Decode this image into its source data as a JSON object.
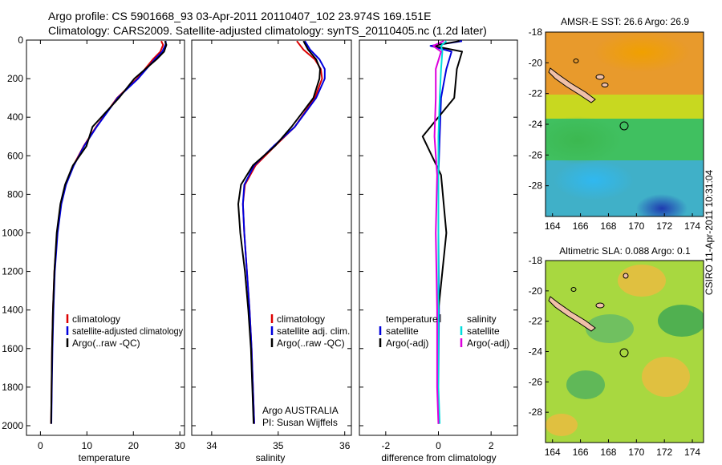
{
  "header": {
    "line1": "Argo profile: CS 5901668_93 03-Apr-2011 20110407_102 23.974S 169.151E",
    "line2": "Climatology: CARS2009. Satellite-adjusted climatology: synTS_20110405.nc (1.2d later)"
  },
  "credit": "CSIRO 11-Apr-2011 10:31:04",
  "chart_data": [
    {
      "type": "line",
      "panel": "temperature",
      "xlabel": "temperature",
      "ylabel": "",
      "xlim": [
        -3,
        31
      ],
      "ylim": [
        2050,
        0
      ],
      "xticks": [
        0,
        10,
        20,
        30
      ],
      "yticks": [
        0,
        200,
        400,
        600,
        800,
        1000,
        1200,
        1400,
        1600,
        1800,
        2000
      ],
      "legend": [
        "climatology",
        "satellite-adjusted climatology",
        "Argo(..raw -QC)"
      ],
      "series": [
        {
          "name": "climatology",
          "color": "#dd0000",
          "x": [
            26.0,
            26.4,
            25.8,
            24.2,
            20.8,
            16.5,
            12.0,
            9.3,
            7.1,
            5.4,
            4.4,
            3.6,
            3.0,
            2.7,
            2.5,
            2.4,
            2.3
          ],
          "y": [
            5,
            25,
            60,
            100,
            200,
            300,
            450,
            550,
            650,
            750,
            850,
            1000,
            1200,
            1400,
            1600,
            1800,
            1990
          ]
        },
        {
          "name": "satellite-adjusted climatology",
          "color": "#0000dd",
          "x": [
            27.0,
            26.9,
            26.2,
            24.6,
            21.0,
            16.6,
            12.1,
            9.4,
            7.2,
            5.5,
            4.5,
            3.7,
            3.1,
            2.8,
            2.6,
            2.45,
            2.35
          ],
          "y": [
            5,
            25,
            60,
            100,
            200,
            300,
            450,
            550,
            650,
            750,
            850,
            1000,
            1200,
            1400,
            1600,
            1800,
            1990
          ]
        },
        {
          "name": "Argo(..raw -QC)",
          "color": "#000000",
          "x": [
            26.8,
            27.1,
            26.6,
            25.0,
            20.2,
            16.9,
            11.2,
            9.9,
            7.0,
            5.3,
            4.3,
            3.5,
            3.0,
            2.7,
            2.5,
            2.4,
            2.3
          ],
          "y": [
            5,
            25,
            60,
            100,
            200,
            300,
            450,
            550,
            650,
            750,
            850,
            1000,
            1200,
            1400,
            1600,
            1800,
            1990
          ]
        }
      ]
    },
    {
      "type": "line",
      "panel": "salinity",
      "xlabel": "salinity",
      "ylabel": "",
      "xlim": [
        33.7,
        36.1
      ],
      "ylim": [
        2050,
        0
      ],
      "xticks": [
        34,
        35,
        36
      ],
      "yticks": [
        0,
        200,
        400,
        600,
        800,
        1000,
        1200,
        1400,
        1600,
        1800,
        2000
      ],
      "legend": [
        "climatology",
        "satellite adj. clim.",
        "Argo(..raw -QC)"
      ],
      "annotations": [
        "Argo AUSTRALIA",
        "PI: Susan Wijffels"
      ],
      "series": [
        {
          "name": "climatology",
          "color": "#dd0000",
          "x": [
            35.28,
            35.38,
            35.55,
            35.64,
            35.66,
            35.55,
            35.25,
            34.95,
            34.66,
            34.5,
            34.47,
            34.49,
            34.53,
            34.57,
            34.6,
            34.62,
            34.64
          ],
          "y": [
            5,
            50,
            100,
            150,
            200,
            300,
            450,
            550,
            650,
            750,
            850,
            1000,
            1200,
            1400,
            1600,
            1800,
            1990
          ]
        },
        {
          "name": "satellite adj. clim.",
          "color": "#0000dd",
          "x": [
            35.4,
            35.48,
            35.62,
            35.7,
            35.7,
            35.57,
            35.25,
            34.93,
            34.64,
            34.49,
            34.47,
            34.49,
            34.53,
            34.57,
            34.6,
            34.62,
            34.64
          ],
          "y": [
            5,
            50,
            100,
            150,
            200,
            300,
            450,
            550,
            650,
            750,
            850,
            1000,
            1200,
            1400,
            1600,
            1800,
            1990
          ]
        },
        {
          "name": "Argo(..raw -QC)",
          "color": "#000000",
          "x": [
            35.38,
            35.45,
            35.57,
            35.63,
            35.62,
            35.53,
            35.2,
            34.95,
            34.62,
            34.44,
            34.4,
            34.43,
            34.5,
            34.55,
            34.59,
            34.61,
            34.63
          ],
          "y": [
            5,
            50,
            100,
            150,
            200,
            300,
            450,
            550,
            650,
            750,
            850,
            1000,
            1200,
            1400,
            1600,
            1800,
            1990
          ]
        }
      ]
    },
    {
      "type": "line",
      "panel": "difference",
      "xlabel": "difference from climatology",
      "ylabel": "",
      "xlim": [
        -3,
        3
      ],
      "ylim": [
        2050,
        0
      ],
      "xticks": [
        -2,
        0,
        2
      ],
      "yticks": [
        0,
        200,
        400,
        600,
        800,
        1000,
        1200,
        1400,
        1600,
        1800,
        2000
      ],
      "legend_headers": [
        "temperature",
        "salinity"
      ],
      "legend": [
        "satellite",
        "Argo(-adj)",
        "satellite",
        "Argo(-adj)"
      ],
      "series": [
        {
          "name": "temperature satellite",
          "color": "#0000dd",
          "x": [
            0.9,
            -0.3,
            0.5,
            0.3,
            0.1,
            0.05,
            0.0,
            0.0,
            0.02,
            0.0,
            0.0
          ],
          "y": [
            5,
            30,
            60,
            150,
            300,
            500,
            700,
            1000,
            1400,
            1800,
            1990
          ]
        },
        {
          "name": "temperature Argo(-adj)",
          "color": "#000000",
          "x": [
            0.8,
            -0.2,
            0.9,
            0.7,
            0.6,
            -0.6,
            0.1,
            0.3,
            0.0,
            0.0,
            0.0
          ],
          "y": [
            5,
            30,
            60,
            150,
            300,
            500,
            700,
            1000,
            1400,
            1800,
            1990
          ]
        },
        {
          "name": "salinity satellite",
          "color": "#00dddd",
          "x": [
            0.3,
            0.1,
            0.15,
            0.1,
            0.05,
            0.0,
            0.0,
            0.0,
            0.0,
            0.0,
            0.05
          ],
          "y": [
            5,
            30,
            60,
            150,
            300,
            500,
            700,
            1000,
            1400,
            1800,
            1990
          ]
        },
        {
          "name": "salinity Argo(-adj)",
          "color": "#dd00dd",
          "x": [
            0.2,
            -0.2,
            0.1,
            -0.1,
            -0.1,
            -0.15,
            -0.05,
            -0.1,
            -0.05,
            -0.05,
            0.0
          ],
          "y": [
            5,
            30,
            60,
            150,
            300,
            500,
            700,
            1000,
            1400,
            1800,
            1990
          ]
        }
      ]
    },
    {
      "type": "heatmap",
      "panel": "sst",
      "title": "AMSR-E SST: 26.6 Argo: 26.9",
      "xlim": [
        163.5,
        174.8
      ],
      "ylim": [
        -30,
        -18
      ],
      "xticks": [
        164,
        166,
        168,
        170,
        172,
        174
      ],
      "yticks": [
        -28,
        -26,
        -24,
        -22,
        -20,
        -18
      ],
      "argo_position": [
        169.151,
        -23.974
      ]
    },
    {
      "type": "heatmap",
      "panel": "sla",
      "title": "Altimetric SLA: 0.088 Argo: 0.1",
      "xlim": [
        163.5,
        174.8
      ],
      "ylim": [
        -30,
        -18
      ],
      "xticks": [
        164,
        166,
        168,
        170,
        172,
        174
      ],
      "yticks": [
        -28,
        -26,
        -24,
        -22,
        -20,
        -18
      ],
      "argo_position": [
        169.151,
        -23.974
      ]
    }
  ]
}
